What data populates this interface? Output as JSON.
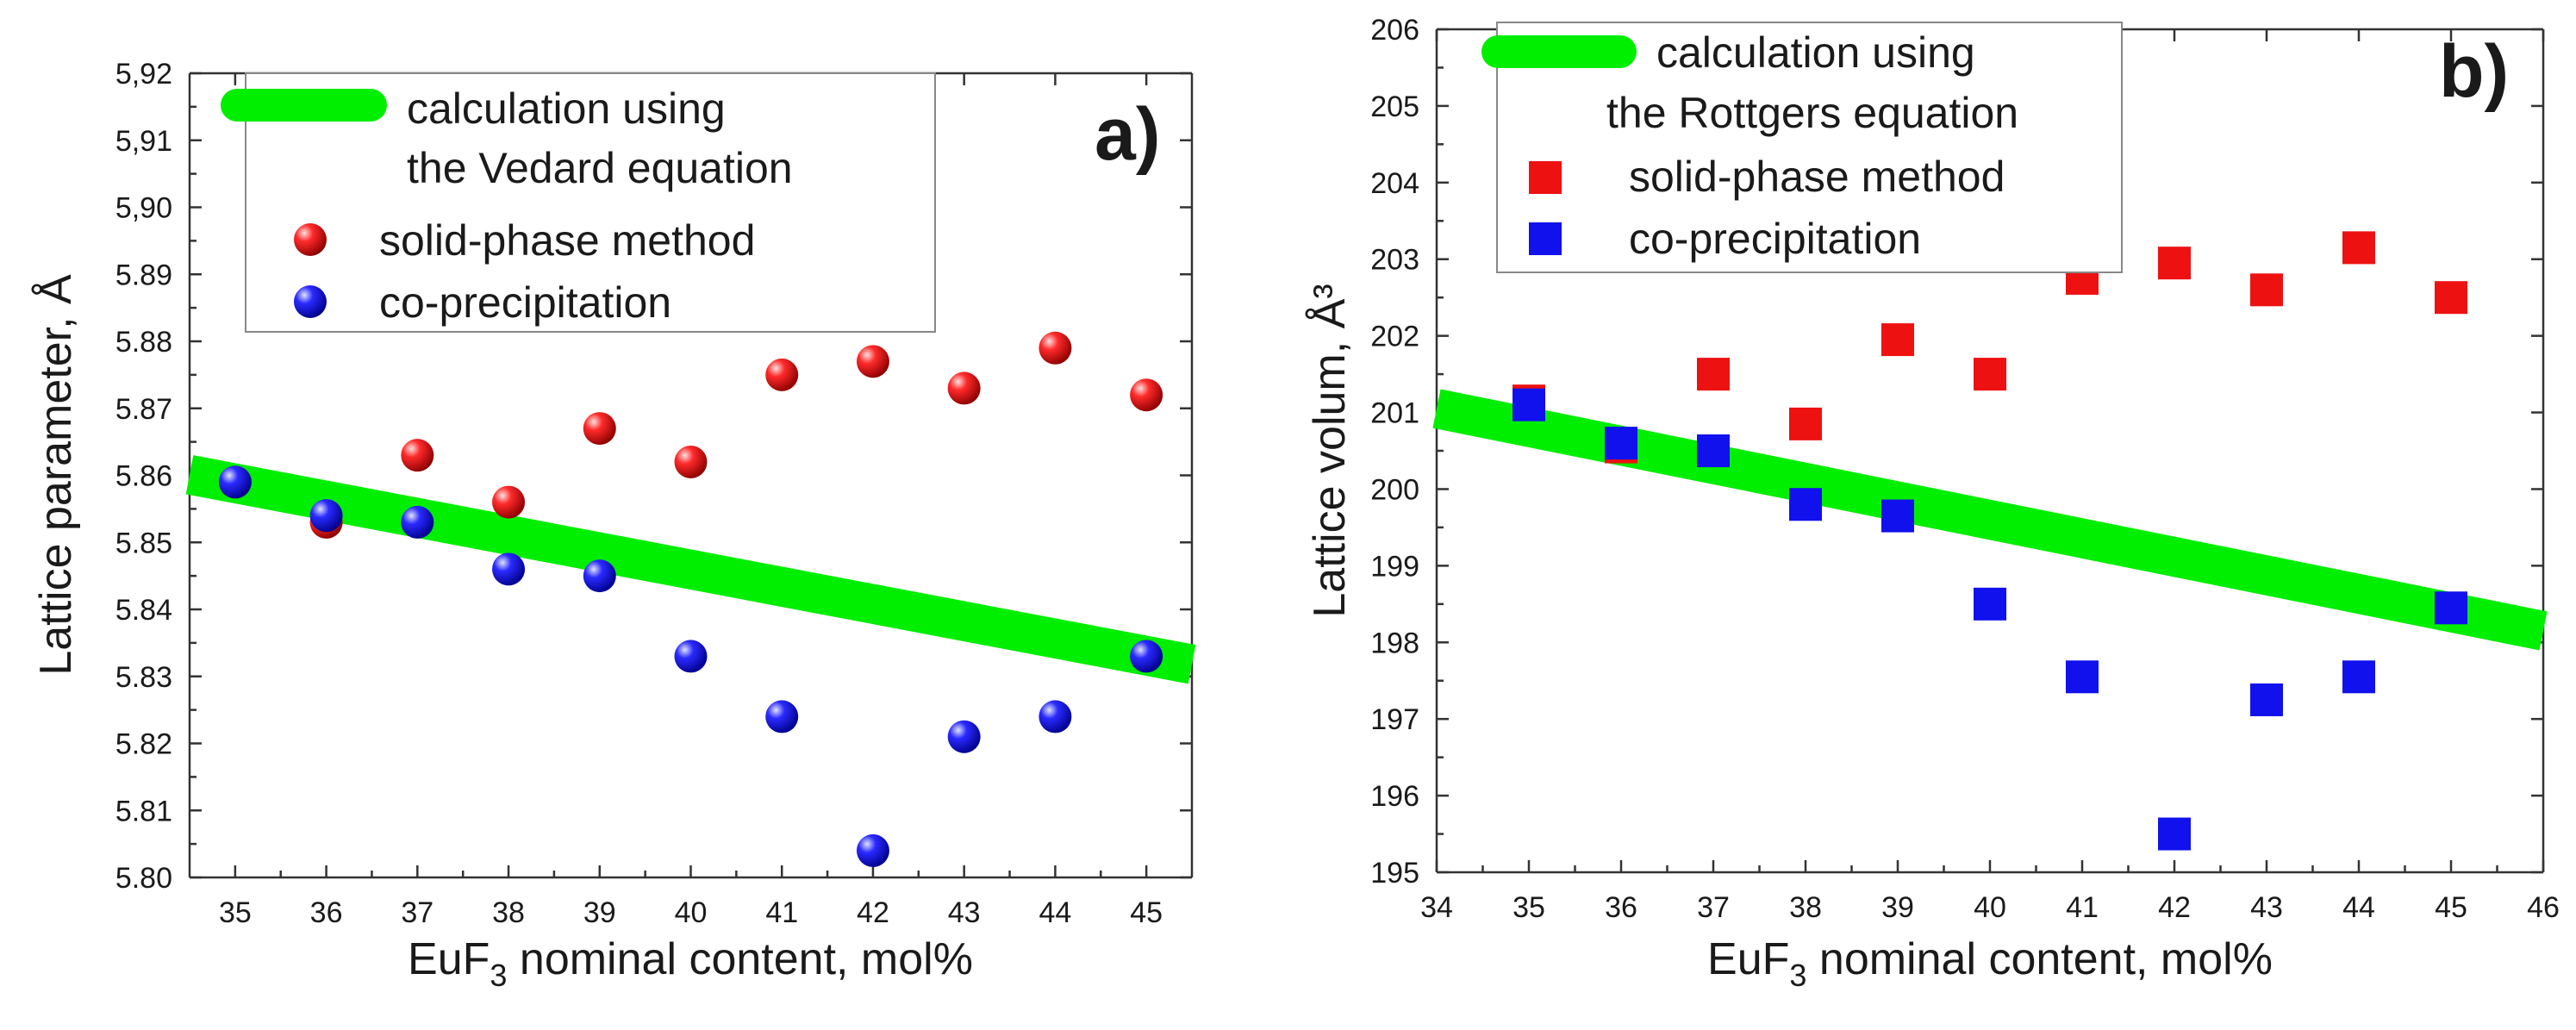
{
  "figure": {
    "chart_data": [
      {
        "type": "scatter",
        "panel_label": "a)",
        "xlabel_main": "EuF",
        "xlabel_sub": "3",
        "xlabel_rest": " nominal content, mol%",
        "ylabel": "Lattice parameter, Å",
        "xlim": [
          34.5,
          45.5
        ],
        "ylim": [
          5.8,
          5.92
        ],
        "xticks": [
          35,
          36,
          37,
          38,
          39,
          40,
          41,
          42,
          43,
          44,
          45
        ],
        "xtick_labels": [
          "35",
          "36",
          "37",
          "38",
          "39",
          "40",
          "41",
          "42",
          "43",
          "44",
          "45"
        ],
        "yticks": [
          5.8,
          5.81,
          5.82,
          5.83,
          5.84,
          5.85,
          5.86,
          5.87,
          5.88,
          5.89,
          5.9,
          5.91,
          5.92
        ],
        "ytick_labels": [
          "5.80",
          "5.81",
          "5.82",
          "5.83",
          "5.84",
          "5.85",
          "5.86",
          "5.87",
          "5.88",
          "5.89",
          "5,90",
          "5,91",
          "5,92"
        ],
        "legend": {
          "calc_line1": "calculation using",
          "calc_line2": "the Vedard equation",
          "solid": "solid-phase method",
          "coprec": "co-precipitation"
        },
        "line": {
          "name": "calculation using the Vedard equation",
          "x": [
            34.5,
            45.5
          ],
          "y": [
            5.8601,
            5.8318
          ],
          "color": "#00ee00"
        },
        "series": [
          {
            "name": "solid-phase method",
            "marker": "sphere",
            "color": "#ee1111",
            "x": [
              35,
              36,
              37,
              38,
              39,
              40,
              41,
              42,
              43,
              44,
              45
            ],
            "y": [
              5.859,
              5.853,
              5.863,
              5.856,
              5.867,
              5.862,
              5.875,
              5.877,
              5.873,
              5.879,
              5.872
            ]
          },
          {
            "name": "co-precipitation",
            "marker": "sphere",
            "color": "#1111ee",
            "x": [
              35,
              36,
              37,
              38,
              39,
              40,
              41,
              42,
              43,
              44,
              45
            ],
            "y": [
              5.859,
              5.854,
              5.853,
              5.846,
              5.845,
              5.833,
              5.824,
              5.804,
              5.821,
              5.824,
              5.833
            ]
          }
        ],
        "grid": false
      },
      {
        "type": "scatter",
        "panel_label": "b)",
        "xlabel_main": "EuF",
        "xlabel_sub": "3",
        "xlabel_rest": " nominal content, mol%",
        "ylabel": "Lattice volum, Å³",
        "xlim": [
          34,
          46
        ],
        "ylim": [
          195,
          206
        ],
        "xticks": [
          34,
          35,
          36,
          37,
          38,
          39,
          40,
          41,
          42,
          43,
          44,
          45,
          46
        ],
        "xtick_labels": [
          "34",
          "35",
          "36",
          "37",
          "38",
          "39",
          "40",
          "41",
          "42",
          "43",
          "44",
          "45",
          "46"
        ],
        "yticks": [
          195,
          196,
          197,
          198,
          199,
          200,
          201,
          202,
          203,
          204,
          205,
          206
        ],
        "ytick_labels": [
          "195",
          "196",
          "197",
          "198",
          "199",
          "200",
          "201",
          "202",
          "203",
          "204",
          "205",
          "206"
        ],
        "legend": {
          "calc_line1": "calculation using",
          "calc_line2": "the Rottgers equation",
          "solid": "solid-phase method",
          "coprec": "co-precipitation"
        },
        "line": {
          "name": "calculation using the Rottgers equation",
          "x": [
            34,
            46
          ],
          "y": [
            201.05,
            198.15
          ],
          "color": "#00ee00"
        },
        "series": [
          {
            "name": "solid-phase method",
            "marker": "square",
            "color": "#ee1111",
            "x": [
              35,
              36,
              37,
              38,
              39,
              40,
              41,
              42,
              43,
              44,
              45
            ],
            "y": [
              201.15,
              200.55,
              201.5,
              200.85,
              201.95,
              201.5,
              202.75,
              202.95,
              202.6,
              203.15,
              202.5
            ]
          },
          {
            "name": "co-precipitation",
            "marker": "square",
            "color": "#1111ee",
            "x": [
              35,
              36,
              37,
              38,
              39,
              40,
              41,
              42,
              43,
              44,
              45
            ],
            "y": [
              201.1,
              200.6,
              200.5,
              199.8,
              199.65,
              198.5,
              197.55,
              195.5,
              197.25,
              197.55,
              198.45
            ]
          }
        ],
        "grid": false
      }
    ]
  }
}
